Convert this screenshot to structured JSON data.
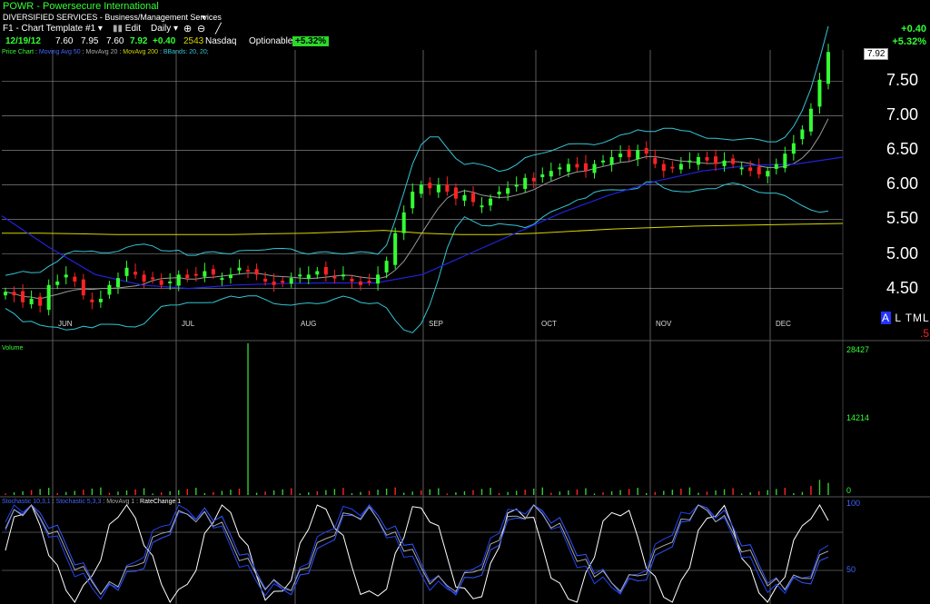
{
  "header": {
    "symbol_line": "POWR - Powersecure International",
    "sector_line": "DIVERSIFIED SERVICES - Business/Management Services",
    "template_label": "F1 - Chart Template #1",
    "edit_label": "Edit",
    "period_label": "Daily",
    "change_abs": "+0.40",
    "change_pct": "+5.32%"
  },
  "quote": {
    "date": "12/19/12",
    "open": "7.60",
    "high": "7.95",
    "low": "7.60",
    "close": "7.92",
    "change": "+0.40",
    "volume": "2543",
    "exchange": "Nasdaq",
    "optionable": "Optionable",
    "change_pct_badge": "+5.32%"
  },
  "legend": {
    "price_chart": "Price Chart",
    "moving_avg_50": "Moving Avg 50",
    "mov_avg_20": "MovAvg 20",
    "mov_avg_200": "MovAvg 200",
    "bbands": "BBands: 20, 20;",
    "volume": "Volume",
    "stoch_1": "Stochastic 10,3,1",
    "stoch_2": "Stochastic 5,3,3",
    "mov_avg_1": "MovAvg 1",
    "rate_change": "RateChange 1"
  },
  "price_axis": {
    "last_price": "7.92",
    "ticks": [
      "7.50",
      "7.00",
      "6.50",
      "6.00",
      "5.50",
      "5.00",
      "4.50"
    ]
  },
  "months": [
    "JUN",
    "JUL",
    "AUG",
    "SEP",
    "OCT",
    "NOV",
    "DEC"
  ],
  "volume_axis": {
    "ticks": [
      "28427",
      "14214",
      "0"
    ]
  },
  "stoch_axis": {
    "ticks": [
      "100",
      "50"
    ]
  },
  "corner": {
    "a": "A",
    "rest": "L TML",
    "red": ".5"
  },
  "colors": {
    "up": "#33ff33",
    "down": "#ff2222",
    "bbands": "#33c6d6",
    "ma50": "#2222dd",
    "ma20": "#9a9a9a",
    "ma200": "#d6d600",
    "grid": "#9a9a9a",
    "volume": "#33cc33"
  },
  "chart_data": {
    "type": "candlestick",
    "x_months": [
      "JUN",
      "JUL",
      "AUG",
      "SEP",
      "OCT",
      "NOV",
      "DEC"
    ],
    "ylim": [
      4.1,
      7.95
    ],
    "close_path": [
      4.45,
      4.4,
      4.3,
      4.35,
      4.25,
      4.55,
      4.6,
      4.7,
      4.6,
      4.4,
      4.3,
      4.35,
      4.55,
      4.65,
      4.8,
      4.7,
      4.6,
      4.65,
      4.55,
      4.6,
      4.7,
      4.65,
      4.7,
      4.75,
      4.7,
      4.65,
      4.7,
      4.8,
      4.75,
      4.7,
      4.6,
      4.55,
      4.6,
      4.65,
      4.7,
      4.7,
      4.75,
      4.7,
      4.65,
      4.7,
      4.6,
      4.55,
      4.6,
      4.7,
      4.9,
      5.3,
      5.6,
      5.9,
      6.0,
      5.95,
      6.0,
      5.9,
      5.8,
      5.85,
      5.75,
      5.7,
      5.8,
      5.9,
      5.95,
      6.0,
      6.1,
      6.05,
      6.15,
      6.2,
      6.25,
      6.3,
      6.25,
      6.2,
      6.3,
      6.35,
      6.4,
      6.45,
      6.4,
      6.5,
      6.45,
      6.3,
      6.2,
      6.25,
      6.3,
      6.35,
      6.4,
      6.35,
      6.3,
      6.35,
      6.3,
      6.25,
      6.2,
      6.15,
      6.2,
      6.3,
      6.45,
      6.6,
      6.8,
      7.1,
      7.52,
      7.92
    ],
    "ma200": [
      5.3,
      5.3,
      5.29,
      5.28,
      5.28,
      5.28,
      5.28,
      5.29,
      5.3,
      5.32,
      5.34,
      5.3,
      5.28,
      5.28,
      5.3,
      5.33,
      5.36,
      5.38,
      5.4,
      5.41,
      5.42,
      5.43,
      5.44
    ],
    "ma50": [
      5.55,
      5.1,
      4.7,
      4.55,
      4.5,
      4.55,
      4.57,
      4.58,
      4.58,
      4.7,
      5.0,
      5.3,
      5.6,
      5.85,
      6.05,
      6.2,
      6.28,
      6.3,
      6.4
    ],
    "volume_max": 28427,
    "volume_spike_index": 28,
    "stoch_range": [
      0,
      100
    ]
  }
}
